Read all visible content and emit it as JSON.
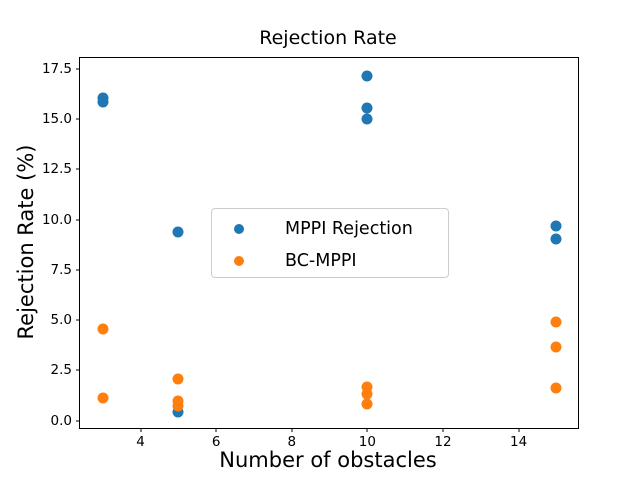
{
  "figure": {
    "title": "Rejection Rate",
    "background_color": "#ffffff",
    "text_color": "#000000"
  },
  "chart_data": {
    "type": "scatter",
    "title": "Rejection Rate",
    "xlabel": "Number of obstacles",
    "ylabel": "Rejection Rate (%)",
    "xlim": [
      2.4,
      15.57
    ],
    "ylim": [
      -0.36,
      18.03
    ],
    "grid": false,
    "legend_position": "center-left-inside",
    "xticks": {
      "values": [
        4,
        6,
        8,
        10,
        12,
        14
      ],
      "labels": [
        "4",
        "6",
        "8",
        "10",
        "12",
        "14"
      ]
    },
    "yticks": {
      "values": [
        0,
        2.5,
        5,
        7.5,
        10,
        12.5,
        15,
        17.5
      ],
      "labels": [
        "0.0",
        "2.5",
        "5.0",
        "7.5",
        "10.0",
        "12.5",
        "15.0",
        "17.5"
      ]
    },
    "series": [
      {
        "name": "MPPI Rejection",
        "color": "#1f77b4",
        "points": [
          [
            3,
            16.05
          ],
          [
            3,
            15.85
          ],
          [
            5,
            9.4
          ],
          [
            5,
            0.45
          ],
          [
            10,
            17.15
          ],
          [
            10,
            15.55
          ],
          [
            10,
            15.0
          ],
          [
            15,
            9.7
          ],
          [
            15,
            9.05
          ]
        ]
      },
      {
        "name": "BC-MPPI",
        "color": "#ff7f0e",
        "points": [
          [
            3,
            4.55
          ],
          [
            3,
            1.15
          ],
          [
            5,
            2.1
          ],
          [
            5,
            1.0
          ],
          [
            5,
            0.75
          ],
          [
            10,
            1.7
          ],
          [
            10,
            1.35
          ],
          [
            10,
            0.85
          ],
          [
            15,
            4.9
          ],
          [
            15,
            3.65
          ],
          [
            15,
            1.65
          ]
        ]
      }
    ]
  },
  "legend": {
    "items": [
      {
        "label": "MPPI Rejection",
        "color": "#1f77b4"
      },
      {
        "label": "BC-MPPI",
        "color": "#ff7f0e"
      }
    ]
  }
}
